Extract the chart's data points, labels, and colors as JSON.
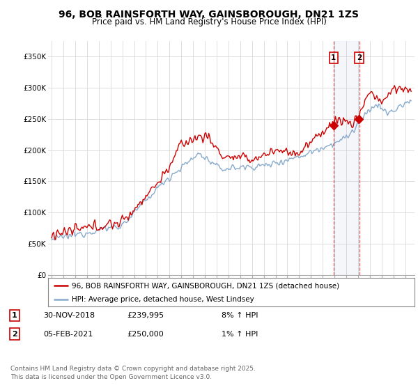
{
  "title": "96, BOB RAINSFORTH WAY, GAINSBOROUGH, DN21 1ZS",
  "subtitle": "Price paid vs. HM Land Registry's House Price Index (HPI)",
  "ylabel_ticks": [
    "£0",
    "£50K",
    "£100K",
    "£150K",
    "£200K",
    "£250K",
    "£300K",
    "£350K"
  ],
  "ytick_values": [
    0,
    50000,
    100000,
    150000,
    200000,
    250000,
    300000,
    350000
  ],
  "ylim": [
    0,
    375000
  ],
  "xlim_start": 1994.7,
  "xlim_end": 2025.8,
  "background_color": "#ffffff",
  "plot_bg_color": "#ffffff",
  "grid_color": "#dddddd",
  "red_line_color": "#cc0000",
  "blue_line_color": "#88aacc",
  "transaction1_date": 2018.92,
  "transaction1_price": 239995,
  "transaction1_label": "1",
  "transaction2_date": 2021.09,
  "transaction2_price": 250000,
  "transaction2_label": "2",
  "legend_red": "96, BOB RAINSFORTH WAY, GAINSBOROUGH, DN21 1ZS (detached house)",
  "legend_blue": "HPI: Average price, detached house, West Lindsey",
  "table_row1": [
    "1",
    "30-NOV-2018",
    "£239,995",
    "8% ↑ HPI"
  ],
  "table_row2": [
    "2",
    "05-FEB-2021",
    "£250,000",
    "1% ↑ HPI"
  ],
  "footer": "Contains HM Land Registry data © Crown copyright and database right 2025.\nThis data is licensed under the Open Government Licence v3.0.",
  "title_fontsize": 10,
  "subtitle_fontsize": 8.5,
  "tick_fontsize": 7.5,
  "legend_fontsize": 7.5,
  "table_fontsize": 8,
  "footer_fontsize": 6.5
}
